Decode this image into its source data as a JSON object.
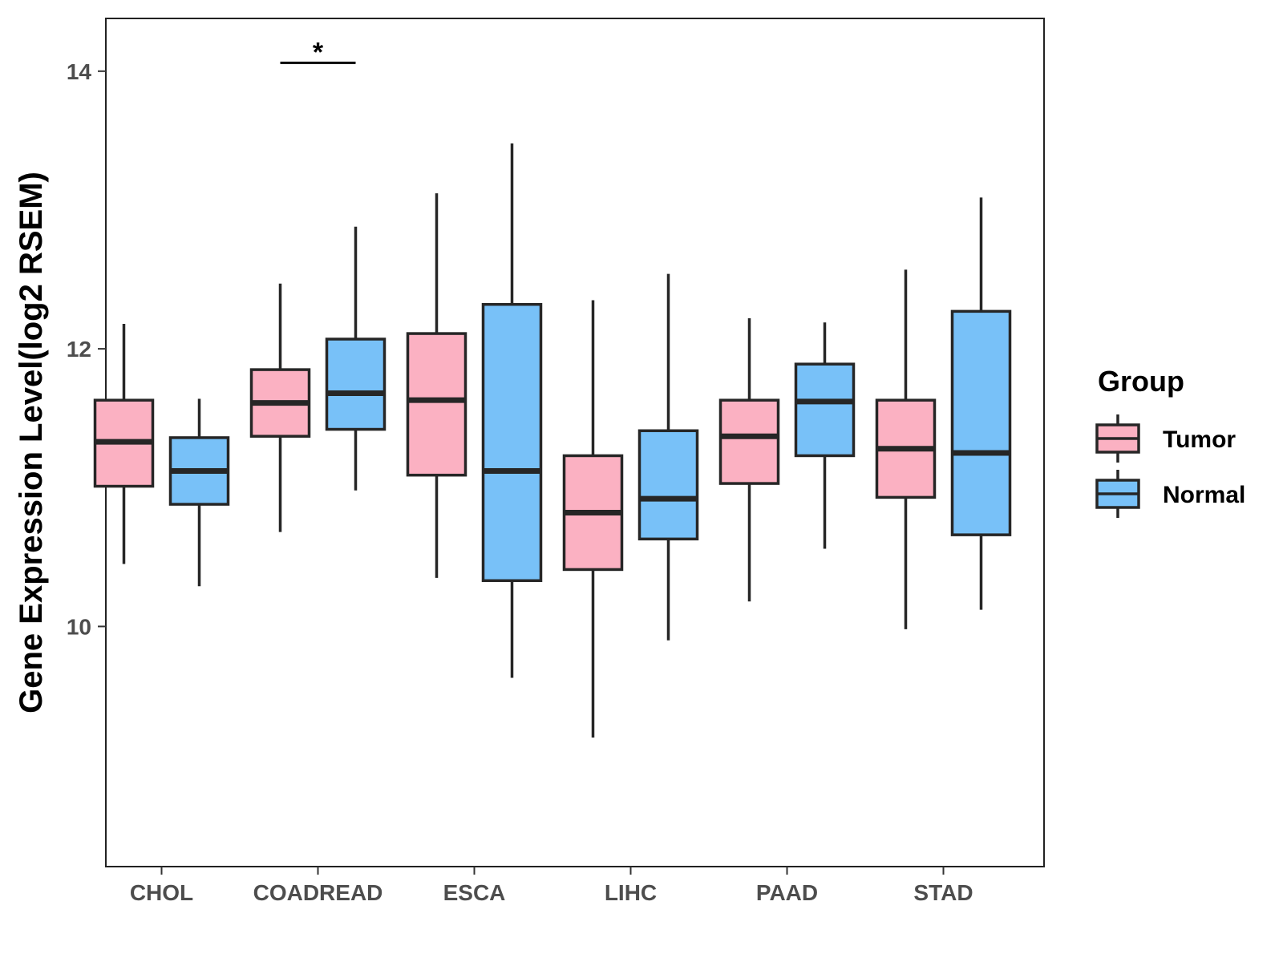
{
  "chart_data": {
    "type": "boxplot",
    "ylabel": "Gene Expression Level(log2 RSEM)",
    "xlabel": "",
    "ylim": [
      8.27,
      14.38
    ],
    "yticks": [
      10,
      12,
      14
    ],
    "categories": [
      "CHOL",
      "COADREAD",
      "ESCA",
      "LIHC",
      "PAAD",
      "STAD"
    ],
    "legend": {
      "title": "Group",
      "position": "right"
    },
    "series": [
      {
        "name": "Tumor",
        "color": "#FBB1C2",
        "boxes": [
          {
            "min": 10.45,
            "q1": 11.01,
            "median": 11.33,
            "q3": 11.63,
            "max": 12.18
          },
          {
            "min": 10.68,
            "q1": 11.37,
            "median": 11.61,
            "q3": 11.85,
            "max": 12.47
          },
          {
            "min": 10.35,
            "q1": 11.09,
            "median": 11.63,
            "q3": 12.11,
            "max": 13.12
          },
          {
            "min": 9.2,
            "q1": 10.41,
            "median": 10.82,
            "q3": 11.23,
            "max": 12.35
          },
          {
            "min": 10.18,
            "q1": 11.03,
            "median": 11.37,
            "q3": 11.63,
            "max": 12.22
          },
          {
            "min": 9.98,
            "q1": 10.93,
            "median": 11.28,
            "q3": 11.63,
            "max": 12.57
          }
        ]
      },
      {
        "name": "Normal",
        "color": "#78C1F8",
        "boxes": [
          {
            "min": 10.29,
            "q1": 10.88,
            "median": 11.12,
            "q3": 11.36,
            "max": 11.64
          },
          {
            "min": 10.98,
            "q1": 11.42,
            "median": 11.68,
            "q3": 12.07,
            "max": 12.88
          },
          {
            "min": 9.63,
            "q1": 10.33,
            "median": 11.12,
            "q3": 12.32,
            "max": 13.48
          },
          {
            "min": 9.9,
            "q1": 10.63,
            "median": 10.92,
            "q3": 11.41,
            "max": 12.54
          },
          {
            "min": 10.56,
            "q1": 11.23,
            "median": 11.62,
            "q3": 11.89,
            "max": 12.19
          },
          {
            "min": 10.12,
            "q1": 10.66,
            "median": 11.25,
            "q3": 12.27,
            "max": 13.09
          }
        ]
      }
    ],
    "annotations": [
      {
        "category": "COADREAD",
        "label": "*",
        "y": 14.06
      }
    ]
  }
}
